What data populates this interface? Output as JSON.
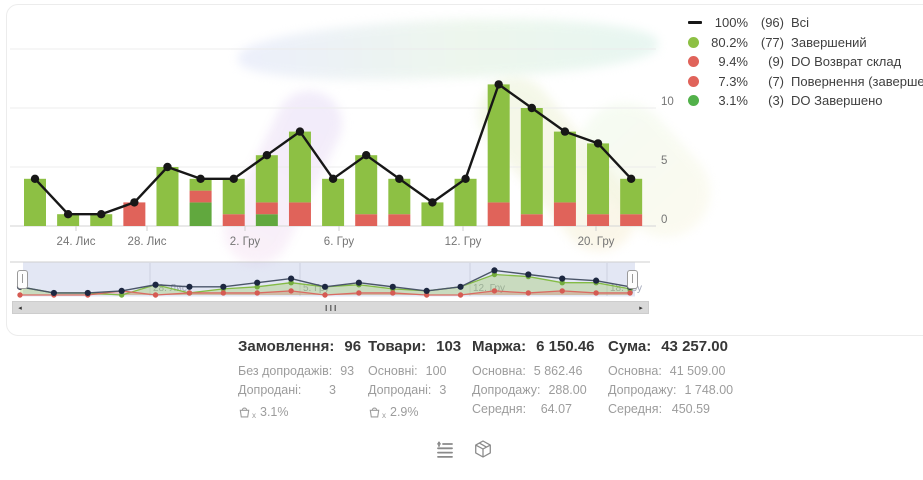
{
  "legend": {
    "items": [
      {
        "marker": "line",
        "color": "#171717",
        "pct": "100%",
        "count": "(96)",
        "label": "Всі"
      },
      {
        "marker": "dot",
        "color": "#8dc044",
        "pct": "80.2%",
        "count": "(77)",
        "label": "Завершений"
      },
      {
        "marker": "dot",
        "color": "#e0635a",
        "pct": "9.4%",
        "count": "(9)",
        "label": "DO Возврат склад"
      },
      {
        "marker": "dot",
        "color": "#e0635a",
        "pct": "7.3%",
        "count": "(7)",
        "label": "Повернення (завершений)"
      },
      {
        "marker": "dot",
        "color": "#52b14a",
        "pct": "3.1%",
        "count": "(3)",
        "label": "DO Завершено"
      }
    ]
  },
  "chart_data": {
    "type": "bar",
    "subtype": "stacked-bars-with-total-line",
    "x_ticks": [
      {
        "label": "24. Лис",
        "x": 66
      },
      {
        "label": "28. Лис",
        "x": 137
      },
      {
        "label": "2. Гру",
        "x": 235
      },
      {
        "label": "6. Гру",
        "x": 329
      },
      {
        "label": "12. Гру",
        "x": 453
      },
      {
        "label": "20. Гру",
        "x": 586
      }
    ],
    "y_ticks": [
      0,
      5,
      10
    ],
    "ylim": [
      0,
      15
    ],
    "series": [
      {
        "name": "Всі",
        "type": "line",
        "color": "#171717",
        "values": [
          4,
          1,
          1,
          2,
          5,
          4,
          4,
          6,
          8,
          4,
          6,
          4,
          2,
          4,
          12,
          10,
          8,
          7,
          4
        ]
      },
      {
        "name": "Завершений",
        "type": "bar",
        "color": "#8dc044",
        "values": [
          4,
          1,
          1,
          0,
          5,
          1,
          3,
          4,
          6,
          4,
          5,
          3,
          2,
          4,
          10,
          9,
          6,
          6,
          3
        ]
      },
      {
        "name": "Повернення / DO Возврат склад",
        "type": "bar",
        "color": "#e0635a",
        "values": [
          0,
          0,
          0,
          2,
          0,
          1,
          1,
          1,
          2,
          0,
          1,
          1,
          0,
          0,
          2,
          1,
          2,
          1,
          1
        ]
      },
      {
        "name": "DO Завершено",
        "type": "bar",
        "color": "#61a83e",
        "values": [
          0,
          0,
          0,
          0,
          0,
          2,
          0,
          1,
          0,
          0,
          0,
          0,
          0,
          0,
          0,
          0,
          0,
          0,
          0
        ]
      }
    ],
    "legend_position": "top-right",
    "grid": true
  },
  "navigator": {
    "labels": [
      {
        "text": "28. Лис",
        "x": 140
      },
      {
        "text": "5. Гру",
        "x": 290
      },
      {
        "text": "12. Гру",
        "x": 460
      },
      {
        "text": "18. Гру",
        "x": 597
      }
    ],
    "selection_color": "rgba(114,134,199,0.20)"
  },
  "scrollbar": {
    "left_arrow": "◂",
    "right_arrow": "▸"
  },
  "stats": {
    "blocks": [
      {
        "title": "Замовлення:",
        "value": "96",
        "rows": [
          {
            "label": "Без допродажів:",
            "value": "93"
          },
          {
            "label": "Допродані:",
            "value": "3"
          }
        ],
        "basket_pct": "3.1%"
      },
      {
        "title": "Товари:",
        "value": "103",
        "rows": [
          {
            "label": "Основні:",
            "value": "100"
          },
          {
            "label": "Допродані:",
            "value": "3"
          }
        ],
        "basket_pct": "2.9%"
      },
      {
        "title": "Маржа:",
        "value": "6 150.46",
        "rows": [
          {
            "label": "Основна:",
            "value": "5 862.46"
          },
          {
            "label": "Допродажу:",
            "value": "288.00"
          },
          {
            "label": "Середня:",
            "value": "64.07"
          }
        ]
      },
      {
        "title": "Сума:",
        "value": "43 257.00",
        "rows": [
          {
            "label": "Основна:",
            "value": "41 509.00"
          },
          {
            "label": "Допродажу:",
            "value": "1 748.00"
          },
          {
            "label": "Середня:",
            "value": "450.59"
          }
        ]
      }
    ]
  },
  "colors": {
    "grid": "#ececec",
    "axis": "#dcdcdc",
    "axis_text": "#757575",
    "nav_total_line": "#4a5568",
    "nav_total_dot": "#1c2740",
    "nav_green_line": "#84bb45",
    "nav_green_dot": "#74ad3e",
    "nav_green_area": "rgba(141,192,68,0.30)",
    "nav_red_line": "#d96b63",
    "nav_red_dot": "#d55b53",
    "nav_red_area": "rgba(220,104,97,0.28)"
  }
}
